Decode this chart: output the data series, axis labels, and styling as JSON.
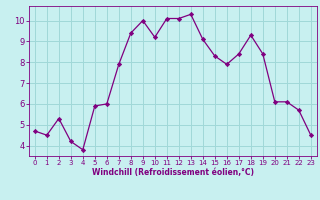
{
  "x": [
    0,
    1,
    2,
    3,
    4,
    5,
    6,
    7,
    8,
    9,
    10,
    11,
    12,
    13,
    14,
    15,
    16,
    17,
    18,
    19,
    20,
    21,
    22,
    23
  ],
  "y": [
    4.7,
    4.5,
    5.3,
    4.2,
    3.8,
    5.9,
    6.0,
    7.9,
    9.4,
    10.0,
    9.2,
    10.1,
    10.1,
    10.3,
    9.1,
    8.3,
    7.9,
    8.4,
    9.3,
    8.4,
    6.1,
    6.1,
    5.7,
    4.5
  ],
  "line_color": "#800080",
  "marker": "D",
  "marker_size": 2.2,
  "bg_color": "#c8f0f0",
  "grid_color": "#a0d8d8",
  "xlabel": "Windchill (Refroidissement éolien,°C)",
  "ylabel": "",
  "ylim": [
    3.5,
    10.7
  ],
  "xlim": [
    -0.5,
    23.5
  ],
  "yticks": [
    4,
    5,
    6,
    7,
    8,
    9,
    10
  ],
  "xticks": [
    0,
    1,
    2,
    3,
    4,
    5,
    6,
    7,
    8,
    9,
    10,
    11,
    12,
    13,
    14,
    15,
    16,
    17,
    18,
    19,
    20,
    21,
    22,
    23
  ],
  "tick_color": "#800080",
  "label_color": "#800080",
  "spine_color": "#800080",
  "xlabel_fontsize": 5.5,
  "tick_fontsize_x": 5.0,
  "tick_fontsize_y": 6.0,
  "linewidth": 0.9
}
